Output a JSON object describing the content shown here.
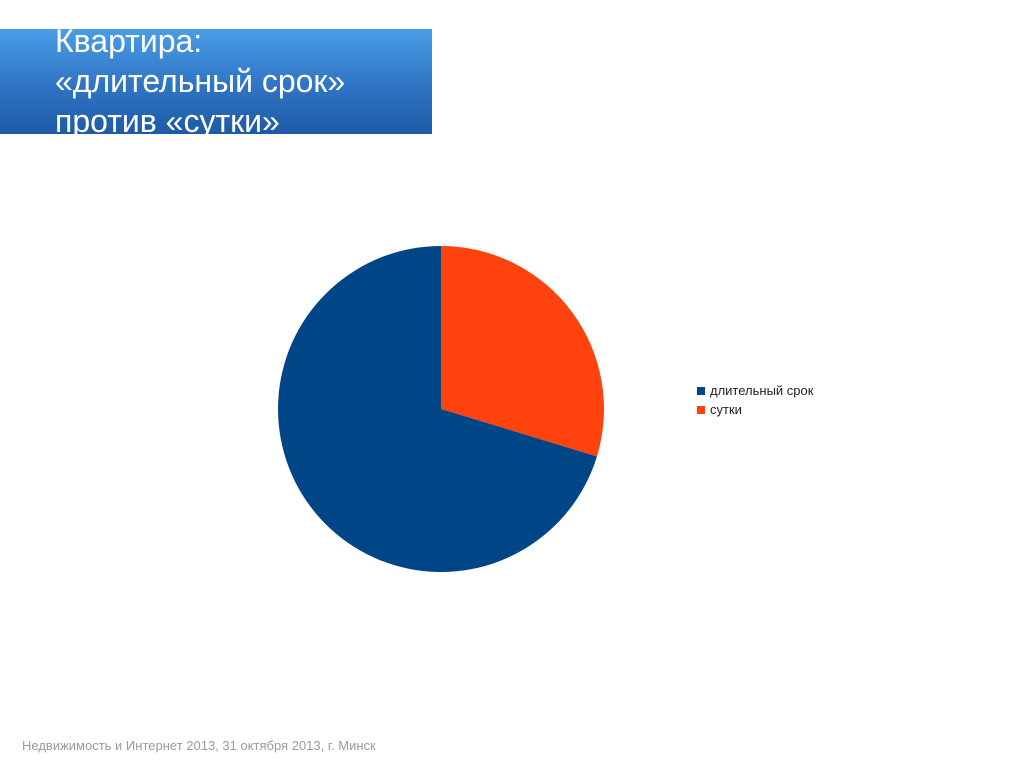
{
  "title": {
    "lines": [
      "Квартира:",
      "«длительный срок»",
      "против «сутки»"
    ]
  },
  "chart_data": {
    "type": "pie",
    "title": "",
    "categories": [
      "длительный срок",
      "сутки"
    ],
    "values": [
      70.3,
      29.7
    ],
    "colors": [
      "#004586",
      "#ff420e"
    ],
    "start_angle": "12 o'clock",
    "direction": "clockwise, сутки first",
    "legend_position": "right"
  },
  "footer": {
    "text": "Недвижимость и Интернет 2013, 31 октября 2013, г. Минск"
  }
}
